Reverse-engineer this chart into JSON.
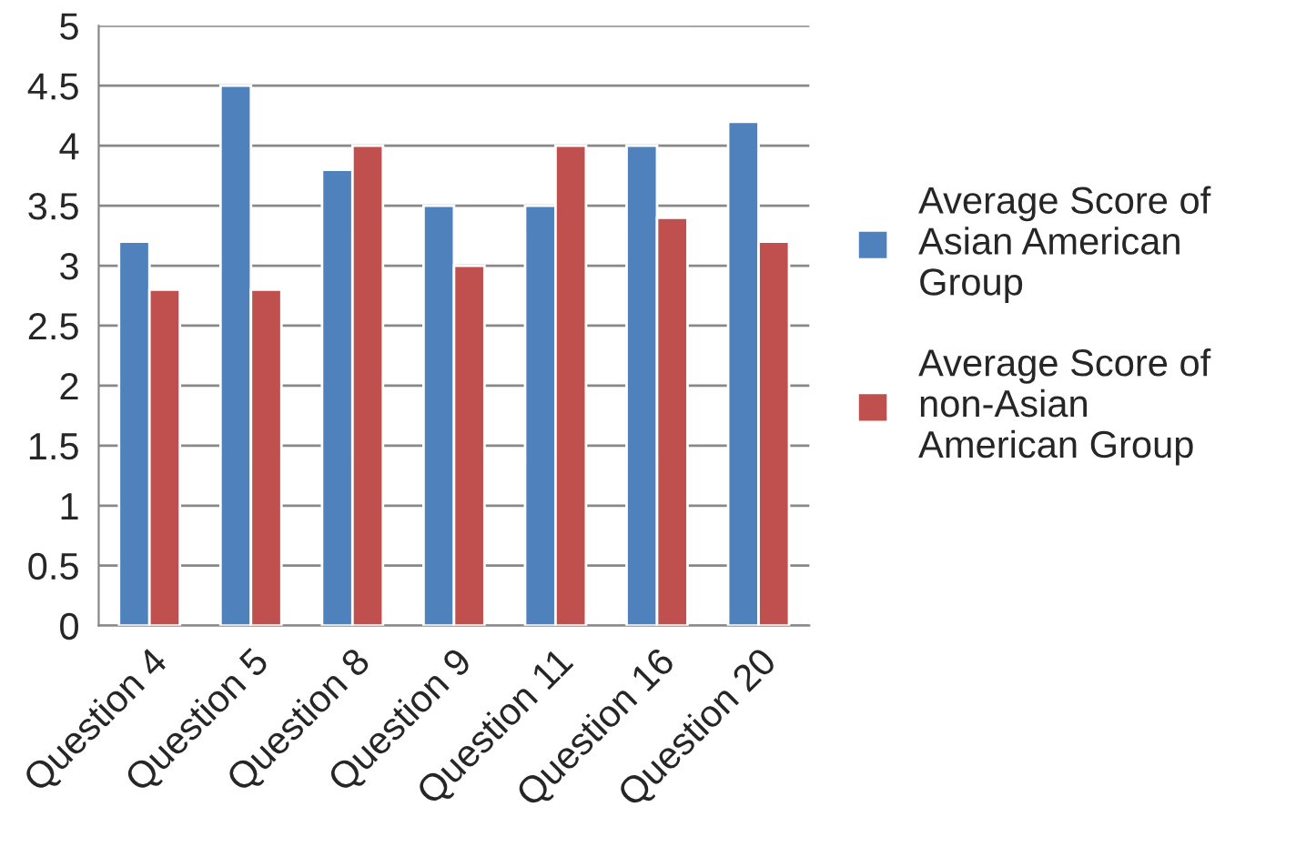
{
  "chart_data": {
    "type": "bar",
    "categories": [
      "Question 4",
      "Question 5",
      "Question 8",
      "Question 9",
      "Question 11",
      "Question 16",
      "Question 20"
    ],
    "series": [
      {
        "name": "Average Score of Asian American Group",
        "color": "#4f81bd",
        "values": [
          3.2,
          4.5,
          3.8,
          3.5,
          3.5,
          4.0,
          4.2
        ]
      },
      {
        "name": "Average Score of non-Asian American Group",
        "color": "#c0504d",
        "values": [
          2.8,
          2.8,
          4.0,
          3.0,
          4.0,
          3.4,
          3.2
        ]
      }
    ],
    "ylim": [
      0,
      5
    ],
    "yticks": [
      0,
      0.5,
      1,
      1.5,
      2,
      2.5,
      3,
      3.5,
      4,
      4.5,
      5
    ],
    "grid": "y",
    "legend": "right"
  }
}
